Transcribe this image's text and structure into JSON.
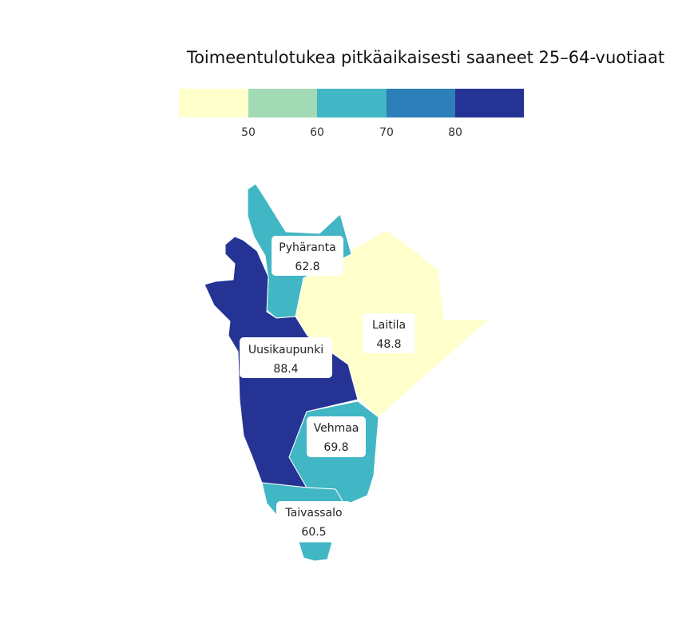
{
  "title": "Toimeentulotukea pitkäaikaisesti saaneet 25–64-vuotiaat",
  "legend": {
    "bins": [
      {
        "max": 50,
        "color": "#ffffcc"
      },
      {
        "min": 50,
        "max": 60,
        "color": "#a1dab4"
      },
      {
        "min": 60,
        "max": 70,
        "color": "#41b6c4"
      },
      {
        "min": 70,
        "max": 80,
        "color": "#2c7fb8"
      },
      {
        "min": 80,
        "color": "#253494"
      }
    ],
    "ticks": [
      "50",
      "60",
      "70",
      "80"
    ]
  },
  "regions": [
    {
      "id": "pyharanta",
      "name": "Pyhäranta",
      "value": "62.8",
      "color": "#41b6c4"
    },
    {
      "id": "laitila",
      "name": "Laitila",
      "value": "48.8",
      "color": "#ffffcc"
    },
    {
      "id": "uusikaupunki",
      "name": "Uusikaupunki",
      "value": "88.4",
      "color": "#253494"
    },
    {
      "id": "vehmaa",
      "name": "Vehmaa",
      "value": "69.8",
      "color": "#41b6c4"
    },
    {
      "id": "taivassalo",
      "name": "Taivassalo",
      "value": "60.5",
      "color": "#41b6c4"
    }
  ]
}
